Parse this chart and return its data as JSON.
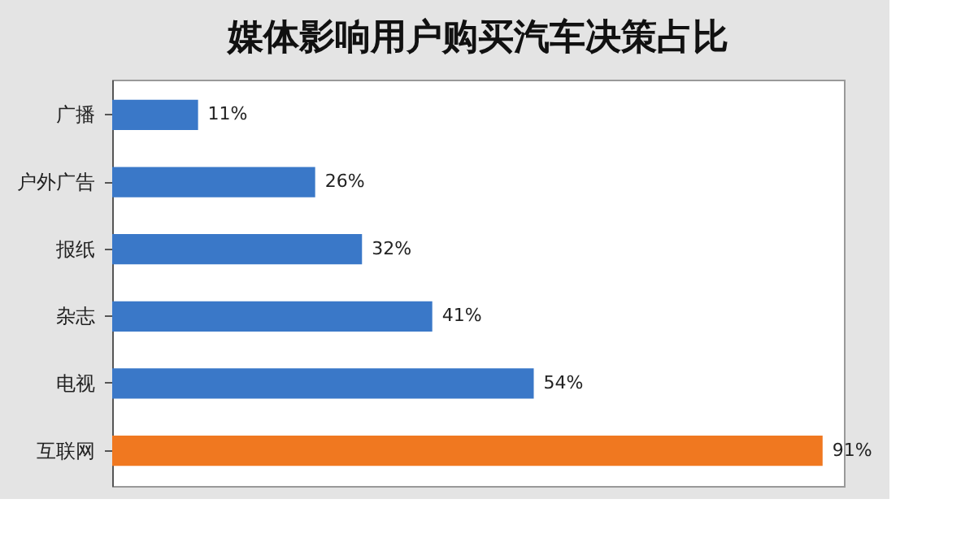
{
  "chart_data": {
    "type": "bar",
    "orientation": "horizontal",
    "title": "媒体影响用户购买汽车决策占比",
    "categories": [
      "广播",
      "户外广告",
      "报纸",
      "杂志",
      "电视",
      "互联网"
    ],
    "values": [
      11,
      26,
      32,
      41,
      54,
      91
    ],
    "value_labels": [
      "11%",
      "26%",
      "32%",
      "41%",
      "54%",
      "91%"
    ],
    "colors": [
      "#3a78c8",
      "#3a78c8",
      "#3a78c8",
      "#3a78c8",
      "#3a78c8",
      "#f07820"
    ],
    "grid": false
  }
}
